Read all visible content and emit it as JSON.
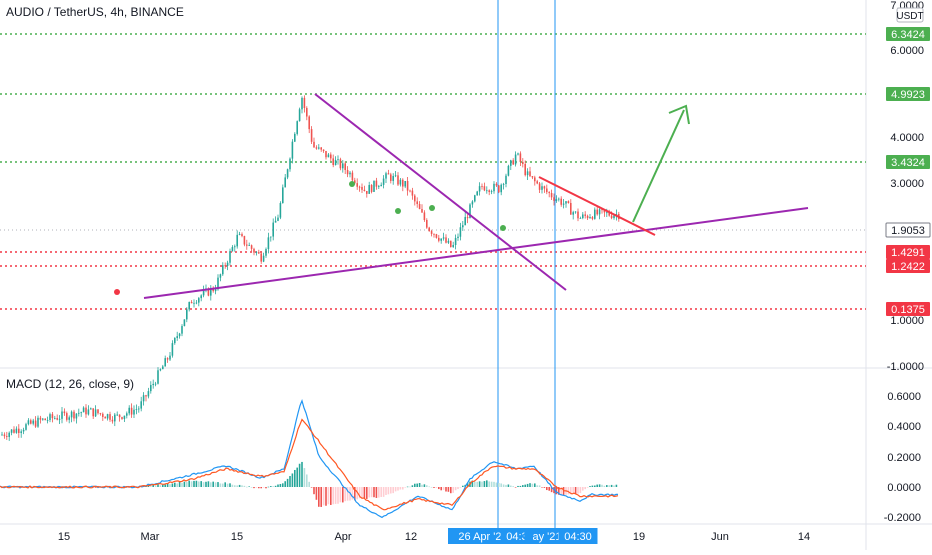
{
  "header": {
    "title": "AUDIO / TetherUS, 4h, BINANCE",
    "currency_badge": "USDT"
  },
  "macd": {
    "title": "MACD (12, 26, close, 9)"
  },
  "chart_data": [
    {
      "type": "candlestick",
      "symbol": "AUDIO / TetherUS, 4h, BINANCE",
      "y_scale": "log",
      "ylim": [
        -1.0,
        7.0
      ],
      "y_ticks": [
        "7.0000",
        "6.0000",
        "4.0000",
        "3.0000",
        "1.0000",
        "-1.0000"
      ],
      "x_ticks": [
        "15",
        "Mar",
        "15",
        "Apr",
        "12",
        "26 Apr '21",
        "04:30",
        "ay '21",
        "04:30",
        "19",
        "Jun",
        "14"
      ],
      "highlighted_x_labels": [
        "26 Apr '21",
        "04:30",
        "ay '21",
        "04:30"
      ],
      "price_path": [
        {
          "x": "Feb 5",
          "close": 0.32
        },
        {
          "x": "Feb 12",
          "close": 0.36
        },
        {
          "x": "Feb 20",
          "close": 0.39
        },
        {
          "x": "Feb 25",
          "close": 0.37
        },
        {
          "x": "Mar 1",
          "close": 0.4
        },
        {
          "x": "Mar 6",
          "close": 0.6
        },
        {
          "x": "Mar 10",
          "close": 0.95
        },
        {
          "x": "Mar 14",
          "close": 1.05
        },
        {
          "x": "Mar 18",
          "close": 1.6
        },
        {
          "x": "Mar 22",
          "close": 1.35
        },
        {
          "x": "Mar 25",
          "close": 1.9
        },
        {
          "x": "Mar 27",
          "close": 3.1
        },
        {
          "x": "Mar 29",
          "close": 4.99
        },
        {
          "x": "Mar 31",
          "close": 3.3
        },
        {
          "x": "Apr 3",
          "close": 3.0
        },
        {
          "x": "Apr 6",
          "close": 2.7
        },
        {
          "x": "Apr 9",
          "close": 2.3
        },
        {
          "x": "Apr 13",
          "close": 2.6
        },
        {
          "x": "Apr 16",
          "close": 2.4
        },
        {
          "x": "Apr 20",
          "close": 1.7
        },
        {
          "x": "Apr 24",
          "close": 1.45
        },
        {
          "x": "Apr 26",
          "close": 1.8
        },
        {
          "x": "Apr 29",
          "close": 2.4
        },
        {
          "x": "May 2",
          "close": 2.35
        },
        {
          "x": "May 5",
          "close": 3.1
        },
        {
          "x": "May 7",
          "close": 2.6
        },
        {
          "x": "May 10",
          "close": 2.3
        },
        {
          "x": "May 13",
          "close": 2.1
        },
        {
          "x": "May 16",
          "close": 1.85
        },
        {
          "x": "May 18",
          "close": 1.91
        }
      ],
      "horizontal_levels": [
        {
          "value": 6.3424,
          "label": "6.3424",
          "color": "#4caf50",
          "style": "dotted"
        },
        {
          "value": 4.9923,
          "label": "4.9923",
          "color": "#4caf50",
          "style": "dotted"
        },
        {
          "value": 3.4324,
          "label": "3.4324",
          "color": "#4caf50",
          "style": "dotted"
        },
        {
          "value": 1.4291,
          "label": "1.4291",
          "color": "#f23645",
          "style": "dotted"
        },
        {
          "value": 1.2422,
          "label": "1.2422",
          "color": "#f23645",
          "style": "dotted"
        },
        {
          "value": 0.1375,
          "label": "0.1375",
          "color": "#f23645",
          "style": "dotted"
        }
      ],
      "current_price": {
        "value": 1.9053,
        "label": "1.9053"
      },
      "annotations": [
        {
          "type": "trendline",
          "color": "#9c27b0",
          "from": {
            "x": "Mar 1",
            "y": 0.4
          },
          "to": {
            "x": "Jun 15",
            "y": 2.4
          }
        },
        {
          "type": "trendline",
          "color": "#9c27b0",
          "from": {
            "x": "Mar 29",
            "y": 4.99
          },
          "to": {
            "x": "May 4",
            "y": 0.85
          }
        },
        {
          "type": "trendline",
          "color": "#f23645",
          "from": {
            "x": "May 5",
            "y": 3.1
          },
          "to": {
            "x": "May 22",
            "y": 1.75
          }
        },
        {
          "type": "arrow",
          "color": "#4caf50",
          "from": {
            "x": "May 18",
            "y": 2.0
          },
          "to": {
            "x": "May 25",
            "y": 4.8
          }
        },
        {
          "type": "vertical_line",
          "color": "#2196f3",
          "x": "26 Apr '21 04:30"
        },
        {
          "type": "vertical_line",
          "color": "#2196f3",
          "x": "ay '21 04:30"
        }
      ],
      "colors": {
        "up": "#26a69a",
        "down": "#ef5350",
        "marker_green": "#4caf50",
        "marker_red": "#f23645"
      }
    },
    {
      "type": "line",
      "title": "MACD (12, 26, close, 9)",
      "ylim": [
        -0.2,
        0.6
      ],
      "y_ticks": [
        "0.6000",
        "0.4000",
        "0.2000",
        "0.0000",
        "-0.2000"
      ],
      "series": [
        {
          "name": "MACD",
          "color": "#2196f3",
          "points": [
            [
              "Feb 5",
              0.0
            ],
            [
              "Mar 1",
              0.0
            ],
            [
              "Mar 10",
              0.08
            ],
            [
              "Mar 16",
              0.14
            ],
            [
              "Mar 22",
              0.06
            ],
            [
              "Mar 26",
              0.12
            ],
            [
              "Mar 29",
              0.58
            ],
            [
              "Apr 1",
              0.2
            ],
            [
              "Apr 8",
              -0.12
            ],
            [
              "Apr 12",
              -0.2
            ],
            [
              "Apr 18",
              -0.06
            ],
            [
              "Apr 24",
              -0.15
            ],
            [
              "Apr 27",
              0.05
            ],
            [
              "May 1",
              0.17
            ],
            [
              "May 5",
              0.12
            ],
            [
              "May 8",
              0.14
            ],
            [
              "May 12",
              -0.04
            ],
            [
              "May 16",
              -0.09
            ],
            [
              "May 18",
              -0.05
            ]
          ]
        },
        {
          "name": "Signal",
          "color": "#ff5722",
          "points": [
            [
              "Feb 5",
              0.0
            ],
            [
              "Mar 1",
              0.0
            ],
            [
              "Mar 10",
              0.05
            ],
            [
              "Mar 16",
              0.12
            ],
            [
              "Mar 22",
              0.07
            ],
            [
              "Mar 26",
              0.1
            ],
            [
              "Mar 29",
              0.45
            ],
            [
              "Apr 1",
              0.3
            ],
            [
              "Apr 8",
              -0.06
            ],
            [
              "Apr 12",
              -0.15
            ],
            [
              "Apr 18",
              -0.08
            ],
            [
              "Apr 24",
              -0.12
            ],
            [
              "Apr 27",
              0.02
            ],
            [
              "May 1",
              0.14
            ],
            [
              "May 5",
              0.12
            ],
            [
              "May 8",
              0.12
            ],
            [
              "May 12",
              0.0
            ],
            [
              "May 16",
              -0.06
            ],
            [
              "May 18",
              -0.06
            ]
          ]
        }
      ]
    }
  ]
}
